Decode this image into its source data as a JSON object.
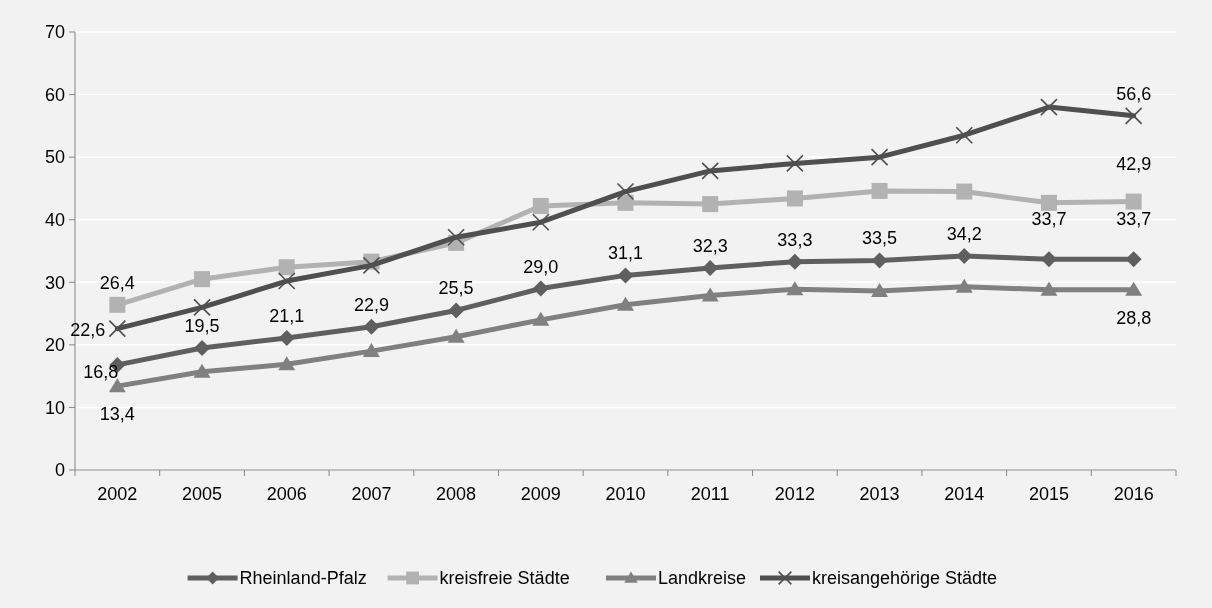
{
  "chart_data": {
    "type": "line",
    "categories": [
      "2002",
      "2005",
      "2006",
      "2007",
      "2008",
      "2009",
      "2010",
      "2011",
      "2012",
      "2013",
      "2014",
      "2015",
      "2016"
    ],
    "ylim": [
      0,
      70
    ],
    "yticks": [
      0,
      10,
      20,
      30,
      40,
      50,
      60,
      70
    ],
    "grid": "y",
    "legend": "bottom",
    "series": [
      {
        "name": "Rheinland-Pfalz",
        "color": "#5f5f5f",
        "marker": "diamond",
        "values": [
          16.8,
          19.5,
          21.1,
          22.9,
          25.5,
          29.0,
          31.1,
          32.3,
          33.3,
          33.5,
          34.2,
          33.7,
          33.7
        ],
        "value_labels": [
          "16,8",
          "19,5",
          "21,1",
          "22,9",
          "25,5",
          "29,0",
          "31,1",
          "32,3",
          "33,3",
          "33,5",
          "34,2",
          "33,7",
          "33,7"
        ]
      },
      {
        "name": "kreisfreie Städte",
        "color": "#b2b2b2",
        "marker": "square",
        "values": [
          26.4,
          30.5,
          32.4,
          33.3,
          36.3,
          42.2,
          42.7,
          42.5,
          43.4,
          44.6,
          44.5,
          42.7,
          42.9
        ],
        "value_labels": [
          "26,4",
          null,
          null,
          null,
          null,
          null,
          null,
          null,
          null,
          null,
          null,
          null,
          "42,9"
        ]
      },
      {
        "name": "Landkreise",
        "color": "#808080",
        "marker": "triangle",
        "values": [
          13.4,
          15.7,
          16.9,
          19.0,
          21.3,
          24.0,
          26.4,
          27.9,
          28.9,
          28.6,
          29.3,
          28.8,
          28.8
        ],
        "value_labels": [
          "13,4",
          null,
          null,
          null,
          null,
          null,
          null,
          null,
          null,
          null,
          null,
          null,
          "28,8"
        ]
      },
      {
        "name": "kreisangehörige Städte",
        "color": "#4f4f4f",
        "marker": "cross",
        "values": [
          22.6,
          26.0,
          30.2,
          32.7,
          37.2,
          39.6,
          44.5,
          47.8,
          49.0,
          50.0,
          53.5,
          58.0,
          56.6
        ],
        "value_labels": [
          "22,6",
          null,
          null,
          null,
          null,
          null,
          null,
          null,
          null,
          null,
          null,
          null,
          "56,6"
        ]
      }
    ]
  }
}
